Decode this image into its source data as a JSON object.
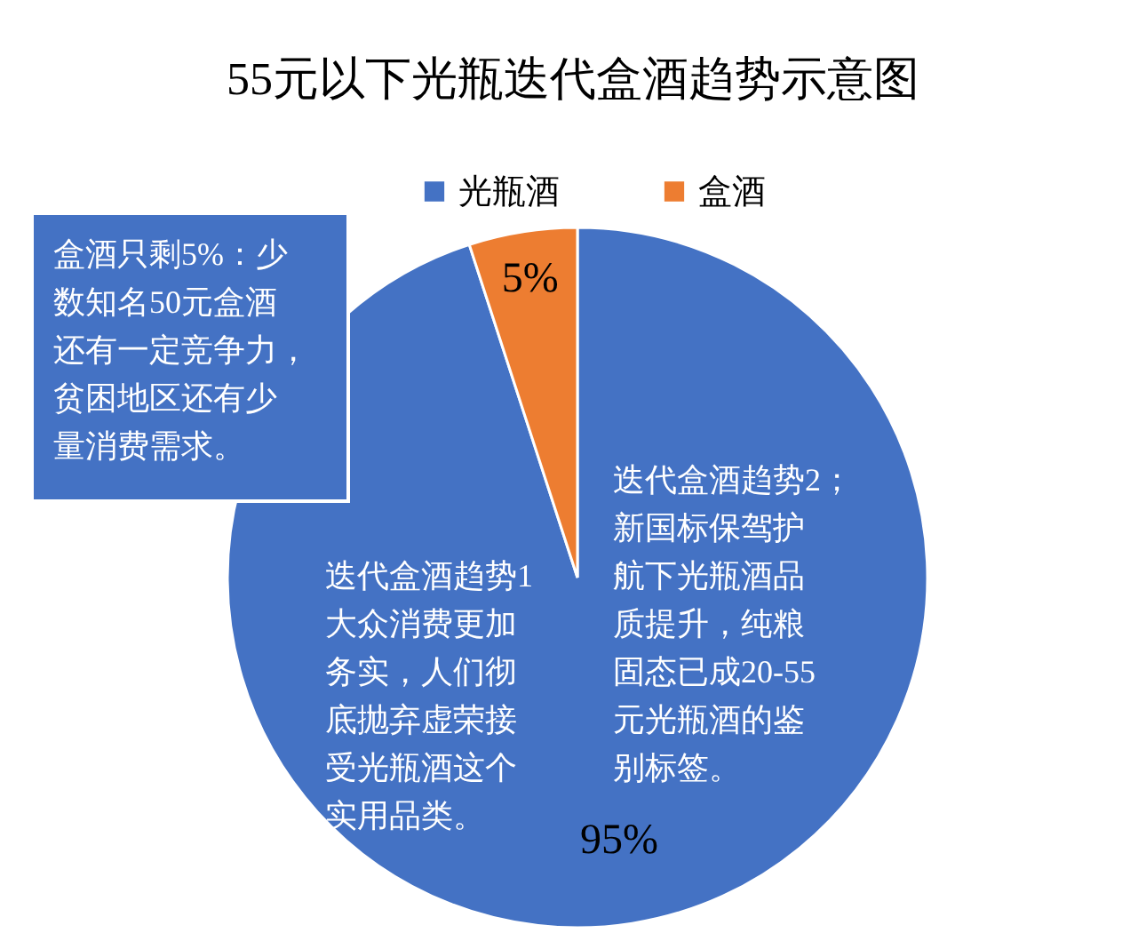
{
  "chart_data": {
    "type": "pie",
    "title": "55元以下光瓶迭代盒酒趋势示意图",
    "categories": [
      "光瓶酒",
      "盒酒"
    ],
    "values": [
      95,
      5
    ],
    "colors": [
      "#4472c4",
      "#ed7d31"
    ],
    "value_labels": [
      "95%",
      "5%"
    ],
    "legend": "top",
    "annotations": [
      "盒酒只剩5%：少数知名50元盒酒还有一定竞争力，贫困地区还有少量消费需求。",
      "迭代盒酒趋势2；新国标保驾护航下光瓶酒品质提升，纯粮固态已成20-55元光瓶酒的鉴别标签。",
      "迭代盒酒趋势1大众消费更加务实，人们彻底抛弃虚荣接受光瓶酒这个实用品类。"
    ]
  }
}
